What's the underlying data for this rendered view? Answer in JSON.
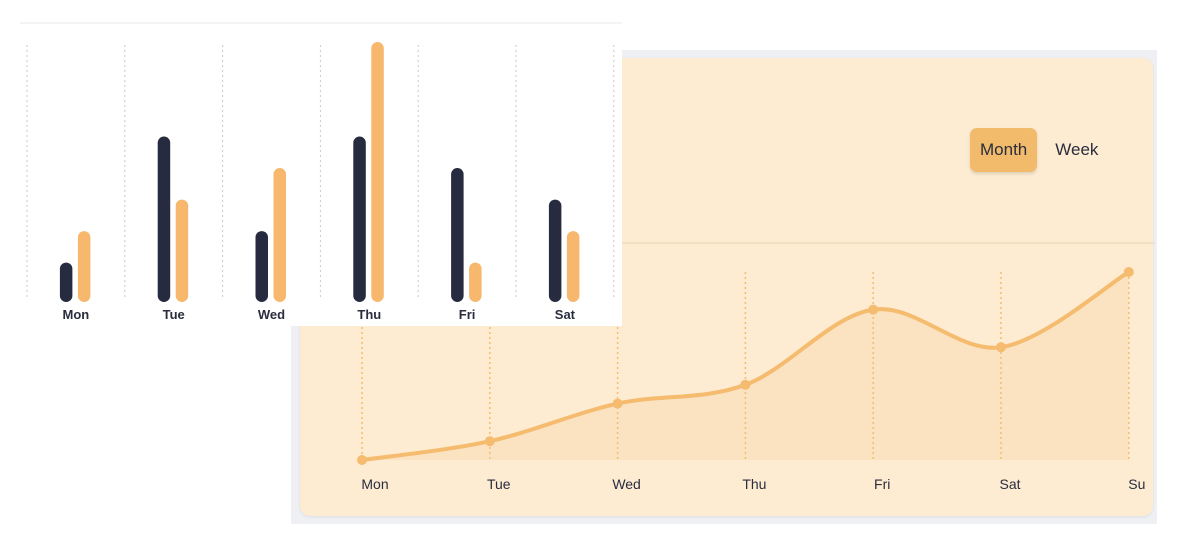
{
  "toggle": {
    "month_label": "Month",
    "week_label": "Week",
    "active": "Month"
  },
  "colors": {
    "dark": "#272b3f",
    "orange": "#f7b86d",
    "line": "#f5bb6e",
    "grid": "#c9c9c9"
  },
  "chart_data": [
    {
      "type": "bar",
      "categories": [
        "Mon",
        "Tue",
        "Wed",
        "Thu",
        "Fri",
        "Sat"
      ],
      "series": [
        {
          "values": [
            5,
            21,
            9,
            21,
            17,
            13
          ]
        },
        {
          "values": [
            9,
            13,
            17,
            33,
            5,
            9
          ]
        }
      ],
      "ylim": [
        0,
        33
      ],
      "grid": true
    },
    {
      "type": "area",
      "categories": [
        "Mon",
        "Tue",
        "Wed",
        "Thu",
        "Fri",
        "Sat",
        "Su"
      ],
      "values": [
        0,
        10,
        30,
        40,
        80,
        60,
        100
      ],
      "ylim": [
        0,
        100
      ],
      "grid": true
    }
  ]
}
